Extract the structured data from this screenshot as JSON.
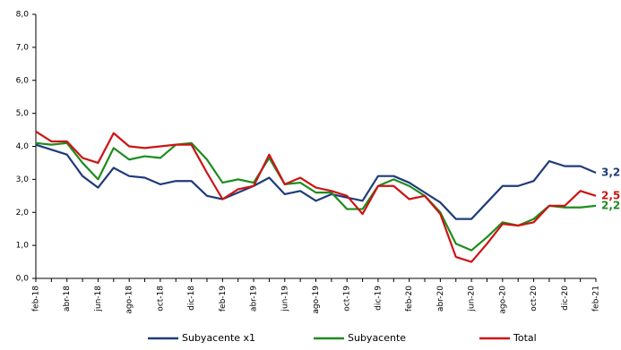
{
  "chart_data": {
    "type": "line",
    "categories": [
      "feb-18",
      null,
      "abr-18",
      null,
      "jun-18",
      null,
      "ago-18",
      null,
      "oct-18",
      null,
      "dic-18",
      null,
      "feb-19",
      null,
      "abr-19",
      null,
      "jun-19",
      null,
      "ago-19",
      null,
      "oct-19",
      null,
      "dic-19",
      null,
      "feb-20",
      null,
      "abr-20",
      null,
      "jun-20",
      null,
      "ago-20",
      null,
      "oct-20",
      null,
      "dic-20",
      null,
      "feb-21"
    ],
    "series": [
      {
        "name": "Subyacente x1",
        "color": "#1f3b7a",
        "values": [
          4.05,
          3.9,
          3.75,
          3.1,
          2.75,
          3.35,
          3.1,
          3.05,
          2.85,
          2.95,
          2.95,
          2.5,
          2.4,
          2.6,
          2.8,
          3.05,
          2.55,
          2.65,
          2.35,
          2.55,
          2.45,
          2.35,
          3.1,
          3.1,
          2.9,
          2.6,
          2.3,
          1.8,
          1.8,
          2.3,
          2.8,
          2.8,
          2.95,
          3.55,
          3.4,
          3.4,
          3.2
        ],
        "value_labels": [
          null,
          null,
          null,
          null,
          null,
          null,
          null,
          null,
          null,
          null,
          null,
          null,
          null,
          null,
          null,
          null,
          null,
          null,
          null,
          null,
          null,
          null,
          null,
          null,
          null,
          null,
          null,
          null,
          null,
          null,
          null,
          null,
          null,
          null,
          null,
          null,
          "3,2"
        ]
      },
      {
        "name": "Subyacente",
        "color": "#1e8c1e",
        "values": [
          4.1,
          4.05,
          4.1,
          3.5,
          3.0,
          3.95,
          3.6,
          3.7,
          3.65,
          4.05,
          4.1,
          3.6,
          2.9,
          3.0,
          2.9,
          3.65,
          2.85,
          2.9,
          2.6,
          2.6,
          2.1,
          2.1,
          2.8,
          3.0,
          2.8,
          2.5,
          2.0,
          1.05,
          0.85,
          1.25,
          1.7,
          1.6,
          1.8,
          2.2,
          2.15,
          2.15,
          2.2
        ],
        "value_labels": [
          null,
          null,
          null,
          null,
          null,
          null,
          null,
          null,
          null,
          null,
          null,
          null,
          null,
          null,
          null,
          null,
          null,
          null,
          null,
          null,
          null,
          null,
          null,
          null,
          null,
          null,
          null,
          null,
          null,
          null,
          null,
          null,
          null,
          null,
          null,
          null,
          "2,2"
        ]
      },
      {
        "name": "Total",
        "color": "#cc1414",
        "values": [
          4.45,
          4.15,
          4.15,
          3.65,
          3.5,
          4.4,
          4.0,
          3.95,
          4.0,
          4.05,
          4.05,
          3.2,
          2.4,
          2.7,
          2.8,
          3.75,
          2.85,
          3.05,
          2.75,
          2.65,
          2.5,
          1.95,
          2.8,
          2.8,
          2.4,
          2.5,
          1.95,
          0.65,
          0.5,
          1.05,
          1.65,
          1.6,
          1.7,
          2.2,
          2.2,
          2.65,
          2.5
        ],
        "value_labels": [
          null,
          null,
          null,
          null,
          null,
          null,
          null,
          null,
          null,
          null,
          null,
          null,
          null,
          null,
          null,
          null,
          null,
          null,
          null,
          null,
          null,
          null,
          null,
          null,
          null,
          null,
          null,
          null,
          null,
          null,
          null,
          null,
          null,
          null,
          null,
          null,
          "2,5"
        ]
      }
    ],
    "ylim": [
      0,
      8
    ],
    "yticks": [
      {
        "value": 0,
        "label": "0,0"
      },
      {
        "value": 1,
        "label": "1,0"
      },
      {
        "value": 2,
        "label": "2,0"
      },
      {
        "value": 3,
        "label": "3,0"
      },
      {
        "value": 4,
        "label": "4,0"
      },
      {
        "value": 5,
        "label": "5,0"
      },
      {
        "value": 6,
        "label": "6,0"
      },
      {
        "value": 7,
        "label": "7,0"
      },
      {
        "value": 8,
        "label": "8,0"
      }
    ],
    "legend": "bottom"
  }
}
